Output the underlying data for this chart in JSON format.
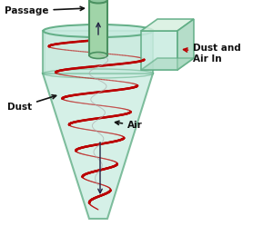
{
  "bg_color": "#ffffff",
  "body_fill": "#c8ebe0",
  "body_edge": "#5aaa80",
  "body_fill2": "#b0ddc8",
  "inlet_front": "#c8ebe0",
  "inlet_top": "#d8f0e0",
  "inlet_right": "#a8d8c0",
  "inlet_edge": "#5aaa80",
  "pipe_fill": "#a0d4a8",
  "pipe_edge": "#4a9060",
  "spiral_color": "#bb0000",
  "inner_spiral_color": "#aaaaaa",
  "arrow_color": "#111111",
  "dark_arrow": "#222244",
  "text_color": "#111111",
  "labels": {
    "passage": "Passage",
    "dust_air": "Dust and\nAir In",
    "dust": "Dust",
    "air": "Air"
  },
  "figsize": [
    3.0,
    2.49
  ],
  "dpi": 100
}
